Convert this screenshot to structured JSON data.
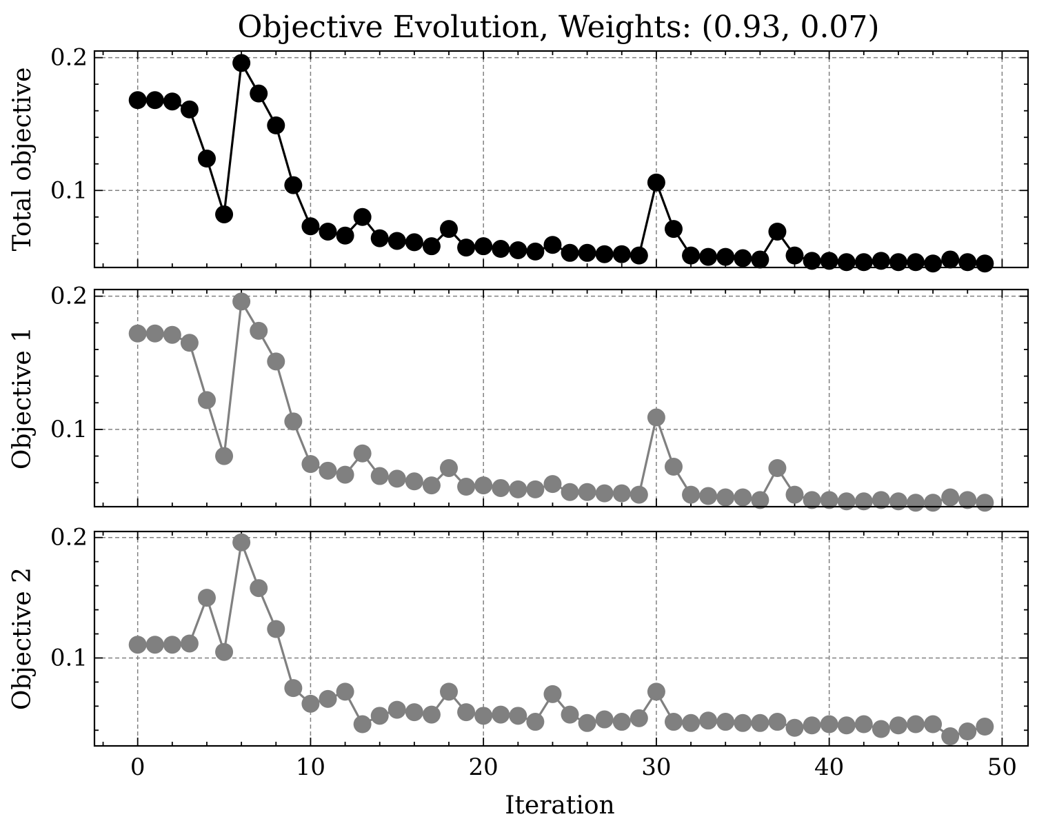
{
  "chart_data": {
    "type": "line",
    "title": "Objective Evolution, Weights: (0.93, 0.07)",
    "xlabel": "Iteration",
    "x": [
      0,
      1,
      2,
      3,
      4,
      5,
      6,
      7,
      8,
      9,
      10,
      11,
      12,
      13,
      14,
      15,
      16,
      17,
      18,
      19,
      20,
      21,
      22,
      23,
      24,
      25,
      26,
      27,
      28,
      29,
      30,
      31,
      32,
      33,
      34,
      35,
      36,
      37,
      38,
      39,
      40,
      41,
      42,
      43,
      44,
      45,
      46,
      47,
      48,
      49
    ],
    "xlim": [
      -2.5,
      51.5
    ],
    "xticks": [
      0,
      10,
      20,
      30,
      40,
      50
    ],
    "xtick_labels": [
      "0",
      "10",
      "20",
      "30",
      "40",
      "50"
    ],
    "grid": true,
    "panels": [
      {
        "ylabel": "Total objective",
        "color": "#000000",
        "ylim": [
          0.042,
          0.205
        ],
        "yticks": [
          0.1,
          0.2
        ],
        "ytick_labels": [
          "0.1",
          "0.2"
        ],
        "values": [
          0.168,
          0.168,
          0.167,
          0.161,
          0.124,
          0.082,
          0.196,
          0.173,
          0.149,
          0.104,
          0.073,
          0.069,
          0.066,
          0.08,
          0.064,
          0.062,
          0.061,
          0.058,
          0.071,
          0.057,
          0.058,
          0.056,
          0.055,
          0.054,
          0.059,
          0.053,
          0.053,
          0.052,
          0.052,
          0.051,
          0.106,
          0.071,
          0.051,
          0.05,
          0.05,
          0.049,
          0.048,
          0.069,
          0.051,
          0.047,
          0.047,
          0.046,
          0.046,
          0.047,
          0.046,
          0.046,
          0.045,
          0.048,
          0.046,
          0.045
        ]
      },
      {
        "ylabel": "Objective 1",
        "color": "#808080",
        "ylim": [
          0.042,
          0.205
        ],
        "yticks": [
          0.1,
          0.2
        ],
        "ytick_labels": [
          "0.1",
          "0.2"
        ],
        "values": [
          0.172,
          0.172,
          0.171,
          0.165,
          0.122,
          0.08,
          0.196,
          0.174,
          0.151,
          0.106,
          0.074,
          0.069,
          0.066,
          0.082,
          0.065,
          0.063,
          0.061,
          0.058,
          0.071,
          0.057,
          0.058,
          0.056,
          0.055,
          0.055,
          0.059,
          0.053,
          0.053,
          0.052,
          0.052,
          0.051,
          0.109,
          0.072,
          0.051,
          0.05,
          0.049,
          0.049,
          0.047,
          0.071,
          0.051,
          0.047,
          0.047,
          0.046,
          0.046,
          0.047,
          0.046,
          0.045,
          0.045,
          0.049,
          0.047,
          0.045
        ]
      },
      {
        "ylabel": "Objective 2",
        "color": "#808080",
        "ylim": [
          0.027,
          0.205
        ],
        "yticks": [
          0.1,
          0.2
        ],
        "ytick_labels": [
          "0.1",
          "0.2"
        ],
        "values": [
          0.111,
          0.111,
          0.111,
          0.112,
          0.15,
          0.105,
          0.196,
          0.158,
          0.124,
          0.075,
          0.062,
          0.066,
          0.072,
          0.045,
          0.052,
          0.057,
          0.055,
          0.053,
          0.072,
          0.055,
          0.052,
          0.053,
          0.052,
          0.047,
          0.07,
          0.053,
          0.046,
          0.049,
          0.047,
          0.05,
          0.072,
          0.047,
          0.046,
          0.048,
          0.047,
          0.046,
          0.046,
          0.047,
          0.042,
          0.044,
          0.045,
          0.044,
          0.045,
          0.041,
          0.044,
          0.045,
          0.045,
          0.035,
          0.039,
          0.043
        ]
      }
    ]
  }
}
